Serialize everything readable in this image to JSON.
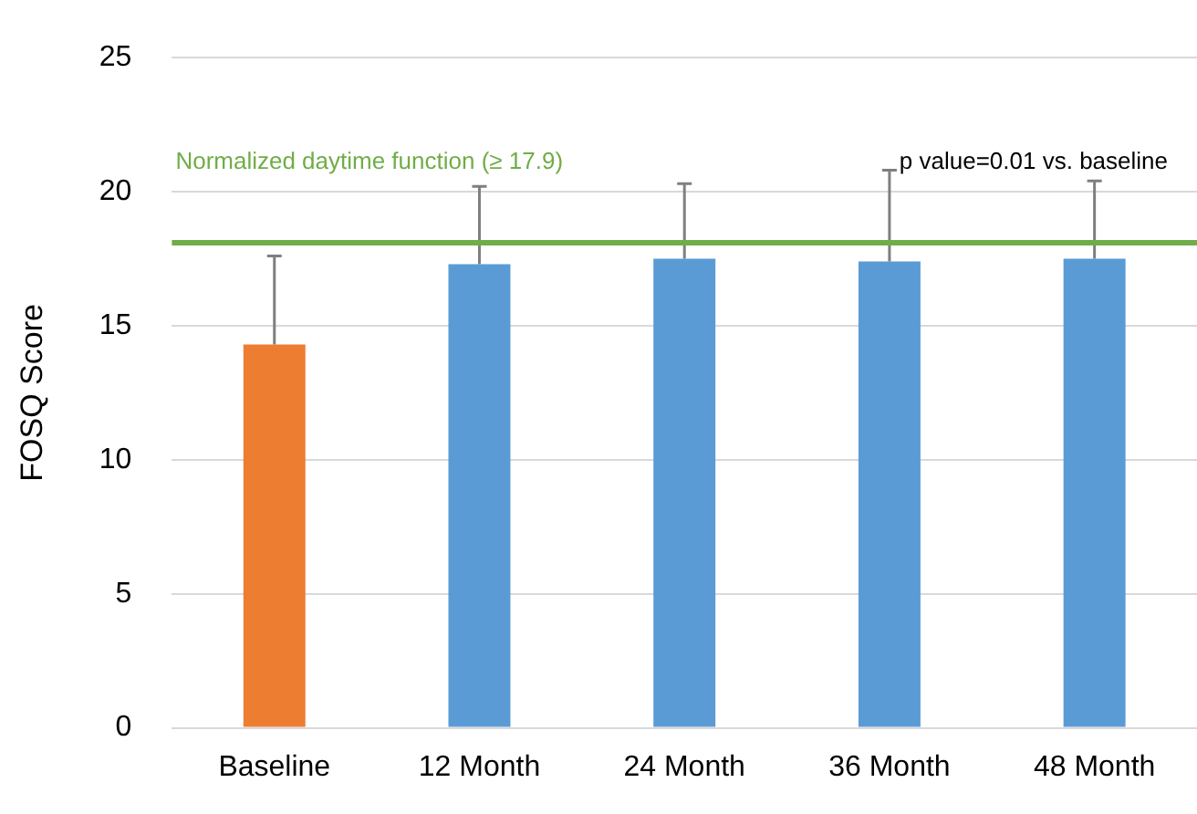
{
  "chart_data": {
    "type": "bar",
    "ylabel": "FOSQ Score",
    "categories": [
      "Baseline",
      "12 Month",
      "24 Month",
      "36 Month",
      "48 Month"
    ],
    "values": [
      14.3,
      17.3,
      17.5,
      17.4,
      17.5
    ],
    "colors": [
      "#ed7d31",
      "#5b9bd5",
      "#5b9bd5",
      "#5b9bd5",
      "#5b9bd5"
    ],
    "errors": [
      [
        14.3,
        17.6
      ],
      [
        17.3,
        20.2
      ],
      [
        17.5,
        20.3
      ],
      [
        17.4,
        20.8
      ],
      [
        17.5,
        20.4
      ]
    ],
    "ylim": [
      0,
      25
    ],
    "yticks": [
      0,
      5,
      10,
      15,
      20,
      25
    ],
    "grid": "y",
    "legend": false,
    "ref_lines": [
      {
        "axis": "y",
        "value": 18.1,
        "label": "Normalized daytime function (≥ 17.9)",
        "color": "#70ad47"
      }
    ],
    "annotations": [
      "p value=0.01 vs. baseline"
    ]
  }
}
